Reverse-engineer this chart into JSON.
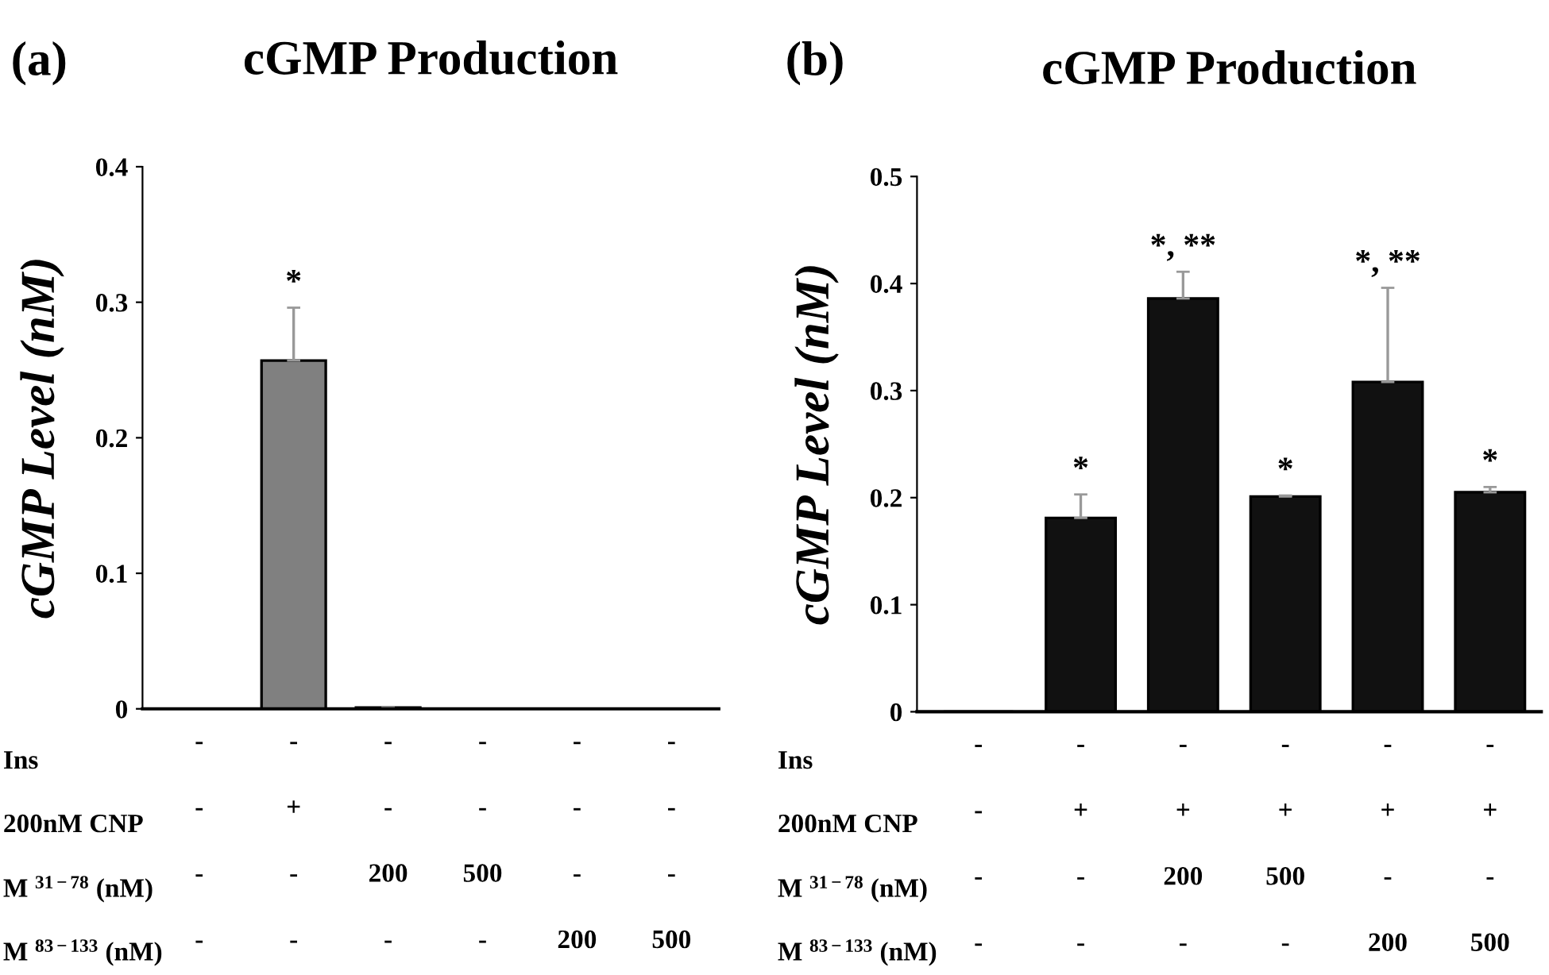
{
  "chart_data": [
    {
      "type": "bar",
      "title": "cGMP Production",
      "ylabel": "cGMP Level (nM)",
      "categories": [
        "-\n-\n-\n-",
        "-\n+\n-\n-",
        "-\n-\n200\n-",
        "-\n-\n500\n-",
        "-\n-\n-\n200",
        "-\n-\n-\n500"
      ],
      "values": [
        0,
        0.257,
        0.001,
        0,
        0,
        0
      ],
      "errors": [
        null,
        0.039,
        null,
        null,
        null,
        null
      ],
      "value_labels": [
        null,
        "*",
        null,
        null,
        null,
        null
      ],
      "color": "#808080",
      "ylim": [
        0,
        0.4
      ],
      "yticks": [
        0,
        0.1,
        0.2,
        0.3,
        0.4
      ],
      "grid": false,
      "annotations": [
        "(a)",
        "Ins",
        "200nM CNP",
        "M $^{31−78}$ (nM)",
        "M $^{83−133}$ (nM)"
      ]
    },
    {
      "type": "bar",
      "title": "cGMP Production",
      "ylabel": "cGMP Level (nM)",
      "categories": [
        "-\n-\n-\n-",
        "-\n+\n-\n-",
        "-\n+\n200\n-",
        "-\n+\n500\n-",
        "-\n+\n-\n200",
        "-\n+\n-\n500"
      ],
      "values": [
        0,
        0.181,
        0.386,
        0.201,
        0.308,
        0.205
      ],
      "errors": [
        null,
        0.022,
        0.025,
        0.001,
        0.088,
        0.005
      ],
      "value_labels": [
        null,
        "*",
        "*, **",
        "*",
        "*, **",
        "*"
      ],
      "color": "#111111",
      "ylim": [
        0,
        0.5
      ],
      "yticks": [
        0,
        0.1,
        0.2,
        0.3,
        0.4,
        0.5
      ],
      "grid": false,
      "annotations": [
        "(b)",
        "Ins",
        "200nM CNP",
        "M $^{31−78}$ (nM)",
        "M $^{83−133}$ (nM)"
      ]
    }
  ]
}
